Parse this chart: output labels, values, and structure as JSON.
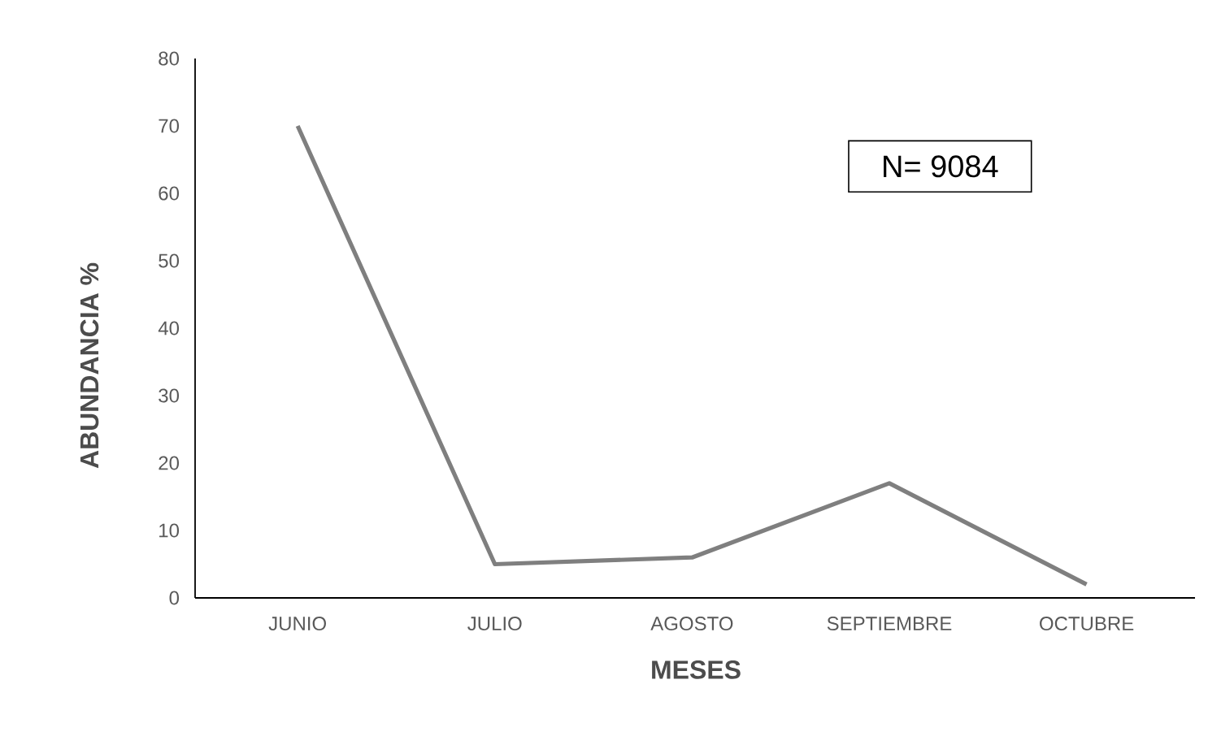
{
  "chart_data": {
    "type": "line",
    "categories": [
      "JUNIO",
      "JULIO",
      "AGOSTO",
      "SEPTIEMBRE",
      "OCTUBRE"
    ],
    "series": [
      {
        "color": "#7f7f7f",
        "values": [
          70,
          5,
          6,
          17,
          2
        ]
      }
    ],
    "ylim": [
      0,
      80
    ],
    "yticks": [
      0,
      10,
      20,
      30,
      40,
      50,
      60,
      70,
      80
    ],
    "xlabel": "MESES",
    "ylabel": "ABUNDANCIA %",
    "annotations": [
      "N= 9084"
    ],
    "grid": false,
    "marker": "none",
    "line_style": "solid"
  }
}
